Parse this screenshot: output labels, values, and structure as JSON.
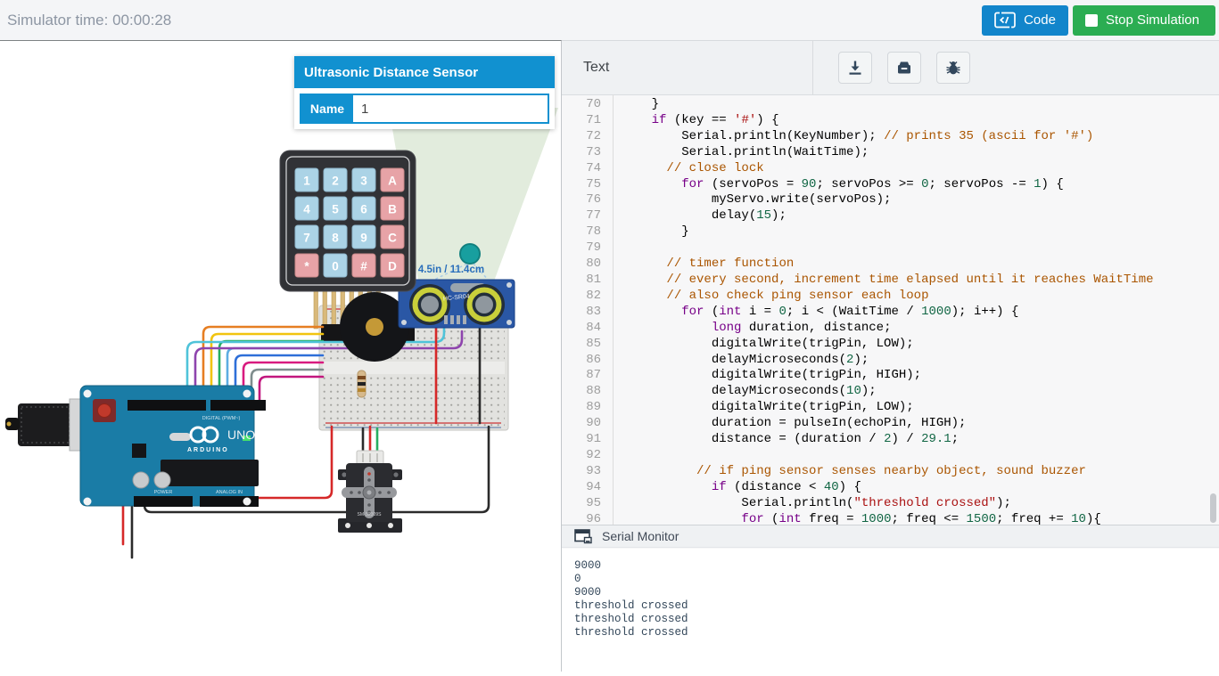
{
  "topbar": {
    "time": "Simulator time: 00:00:28",
    "code_button": "Code",
    "stop_button": "Stop Simulation",
    "colors": {
      "code_blue": "#1285cb",
      "stop_green": "#2bad52"
    }
  },
  "popup": {
    "title": "Ultrasonic Distance Sensor",
    "name_label": "Name",
    "name_value": "1",
    "accent": "#1191d0"
  },
  "canvas": {
    "distance_label": "4.5in / 11.4cm",
    "sensor_model": "HC-SR04",
    "arduino_logo": "UNO",
    "arduino_brand": "ARDUINO",
    "digital_label": "DIGITAL (PWM~)",
    "power_label": "POWER",
    "analog_label": "ANALOG IN",
    "servo_model": "SM-S2309S",
    "keypad_keys": [
      [
        "1",
        "2",
        "3",
        "A"
      ],
      [
        "4",
        "5",
        "6",
        "B"
      ],
      [
        "7",
        "8",
        "9",
        "C"
      ],
      [
        "*",
        "0",
        "#",
        "D"
      ]
    ],
    "keypad_key_colors": {
      "blue": "#abd3e6",
      "pink": "#e7a3a7"
    },
    "pink_keys": [
      "A",
      "B",
      "C",
      "D",
      "*",
      "#"
    ],
    "cone_color": "#e2ecdd",
    "wire_colors": [
      "#4fc3d9",
      "#8e44ad",
      "#e67e22",
      "#f1c40f",
      "#27ae60",
      "#5dade2",
      "#2e6fd8",
      "#d81b7f",
      "#7f8c8d",
      "#c2177e"
    ]
  },
  "editor": {
    "mode_label": "Text",
    "icons": [
      "download",
      "library",
      "debug"
    ],
    "code_lines": [
      {
        "n": 70,
        "t": [
          [
            "p",
            "    }"
          ]
        ]
      },
      {
        "n": 71,
        "t": [
          [
            "p",
            "    "
          ],
          [
            "k",
            "if"
          ],
          [
            "p",
            " (key == "
          ],
          [
            "s",
            "'#'"
          ],
          [
            "p",
            ") {"
          ]
        ]
      },
      {
        "n": 72,
        "t": [
          [
            "p",
            "        Serial.println(KeyNumber); "
          ],
          [
            "c",
            "// prints 35 (ascii for '#')"
          ]
        ]
      },
      {
        "n": 73,
        "t": [
          [
            "p",
            "        Serial.println(WaitTime);"
          ]
        ]
      },
      {
        "n": 74,
        "t": [
          [
            "p",
            "      "
          ],
          [
            "c",
            "// close lock"
          ]
        ]
      },
      {
        "n": 75,
        "t": [
          [
            "p",
            "        "
          ],
          [
            "k",
            "for"
          ],
          [
            "p",
            " (servoPos = "
          ],
          [
            "n",
            "90"
          ],
          [
            "p",
            "; servoPos >= "
          ],
          [
            "n",
            "0"
          ],
          [
            "p",
            "; servoPos -= "
          ],
          [
            "n",
            "1"
          ],
          [
            "p",
            ") {"
          ]
        ]
      },
      {
        "n": 76,
        "t": [
          [
            "p",
            "            myServo.write(servoPos);"
          ]
        ]
      },
      {
        "n": 77,
        "t": [
          [
            "p",
            "            delay("
          ],
          [
            "n",
            "15"
          ],
          [
            "p",
            ");"
          ]
        ]
      },
      {
        "n": 78,
        "t": [
          [
            "p",
            "        }"
          ]
        ]
      },
      {
        "n": 79,
        "t": []
      },
      {
        "n": 80,
        "t": [
          [
            "p",
            "      "
          ],
          [
            "c",
            "// timer function"
          ]
        ]
      },
      {
        "n": 81,
        "t": [
          [
            "p",
            "      "
          ],
          [
            "c",
            "// every second, increment time elapsed until it reaches WaitTime"
          ]
        ]
      },
      {
        "n": 82,
        "t": [
          [
            "p",
            "      "
          ],
          [
            "c",
            "// also check ping sensor each loop"
          ]
        ]
      },
      {
        "n": 83,
        "t": [
          [
            "p",
            "        "
          ],
          [
            "k",
            "for"
          ],
          [
            "p",
            " ("
          ],
          [
            "k",
            "int"
          ],
          [
            "p",
            " i = "
          ],
          [
            "n",
            "0"
          ],
          [
            "p",
            "; i < (WaitTime / "
          ],
          [
            "n",
            "1000"
          ],
          [
            "p",
            "); i++) {"
          ]
        ]
      },
      {
        "n": 84,
        "t": [
          [
            "p",
            "            "
          ],
          [
            "k",
            "long"
          ],
          [
            "p",
            " duration, distance;"
          ]
        ]
      },
      {
        "n": 85,
        "t": [
          [
            "p",
            "            digitalWrite(trigPin, LOW);"
          ]
        ]
      },
      {
        "n": 86,
        "t": [
          [
            "p",
            "            delayMicroseconds("
          ],
          [
            "n",
            "2"
          ],
          [
            "p",
            ");"
          ]
        ]
      },
      {
        "n": 87,
        "t": [
          [
            "p",
            "            digitalWrite(trigPin, HIGH);"
          ]
        ]
      },
      {
        "n": 88,
        "t": [
          [
            "p",
            "            delayMicroseconds("
          ],
          [
            "n",
            "10"
          ],
          [
            "p",
            ");"
          ]
        ]
      },
      {
        "n": 89,
        "t": [
          [
            "p",
            "            digitalWrite(trigPin, LOW);"
          ]
        ]
      },
      {
        "n": 90,
        "t": [
          [
            "p",
            "            duration = pulseIn(echoPin, HIGH);"
          ]
        ]
      },
      {
        "n": 91,
        "t": [
          [
            "p",
            "            distance = (duration / "
          ],
          [
            "n",
            "2"
          ],
          [
            "p",
            ") / "
          ],
          [
            "n",
            "29.1"
          ],
          [
            "p",
            ";"
          ]
        ]
      },
      {
        "n": 92,
        "t": []
      },
      {
        "n": 93,
        "t": [
          [
            "p",
            "          "
          ],
          [
            "c",
            "// if ping sensor senses nearby object, sound buzzer"
          ]
        ]
      },
      {
        "n": 94,
        "t": [
          [
            "p",
            "            "
          ],
          [
            "k",
            "if"
          ],
          [
            "p",
            " (distance < "
          ],
          [
            "n",
            "40"
          ],
          [
            "p",
            ") {"
          ]
        ]
      },
      {
        "n": 95,
        "t": [
          [
            "p",
            "                Serial.println("
          ],
          [
            "s",
            "\"threshold crossed\""
          ],
          [
            "p",
            ");"
          ]
        ]
      },
      {
        "n": 96,
        "t": [
          [
            "p",
            "                "
          ],
          [
            "k",
            "for"
          ],
          [
            "p",
            " ("
          ],
          [
            "k",
            "int"
          ],
          [
            "p",
            " freq = "
          ],
          [
            "n",
            "1000"
          ],
          [
            "p",
            "; freq <= "
          ],
          [
            "n",
            "1500"
          ],
          [
            "p",
            "; freq += "
          ],
          [
            "n",
            "10"
          ],
          [
            "p",
            "){"
          ]
        ]
      }
    ]
  },
  "serial": {
    "title": "Serial Monitor",
    "lines": [
      "9000",
      "0",
      "9000",
      "threshold crossed",
      "threshold crossed",
      "threshold crossed"
    ]
  }
}
